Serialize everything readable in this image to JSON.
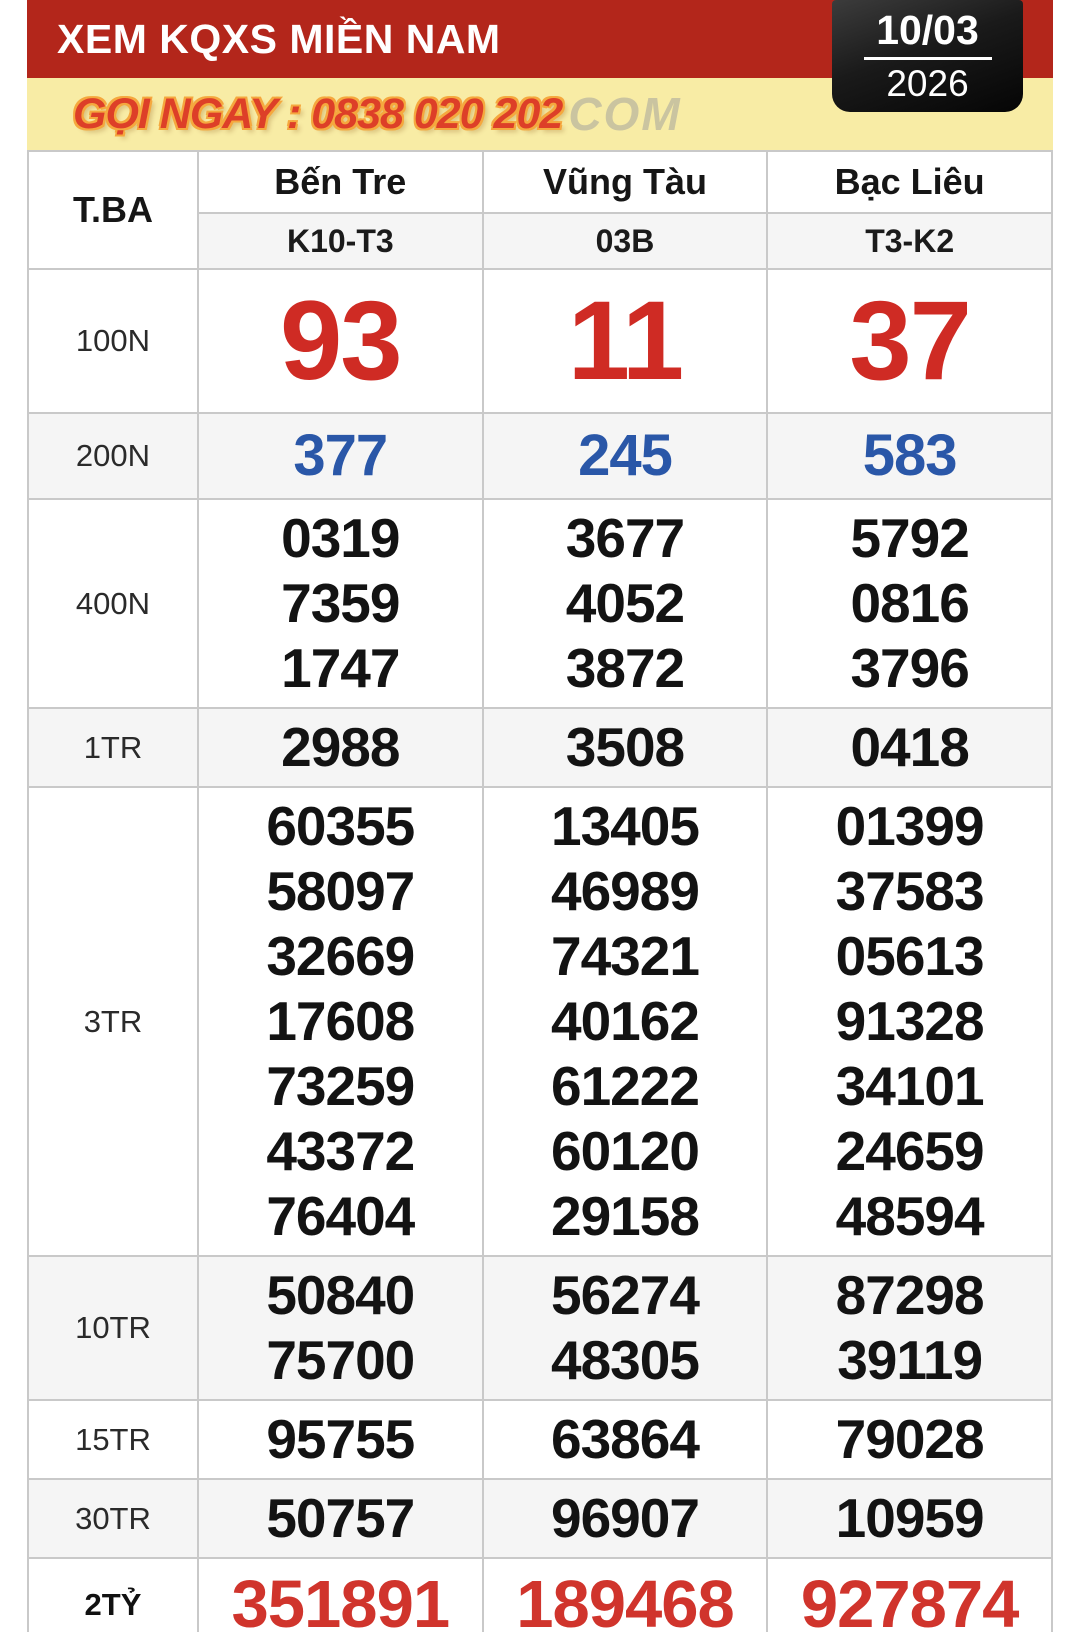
{
  "header": {
    "title": "XEM KQXS MIỀN NAM",
    "date_day": "10/03",
    "date_year": "2026",
    "hotline": "GỌI NGAY : 0838 020 202",
    "watermark": "COM"
  },
  "colors": {
    "banner_red": "#b3261b",
    "hotline_yellow": "#f8eca5",
    "hotline_text_red": "#dd3f28",
    "prize_red": "#cf2b24",
    "prize_blue": "#2a57a8",
    "final_red": "#d0342c"
  },
  "table": {
    "day_label": "T.BA",
    "provinces": [
      "Bến Tre",
      "Vũng Tàu",
      "Bạc Liêu"
    ],
    "draw_codes": [
      "K10-T3",
      "03B",
      "T3-K2"
    ],
    "prize_rows": [
      {
        "label": "100N",
        "style": "red-big",
        "columns": [
          [
            "93"
          ],
          [
            "11"
          ],
          [
            "37"
          ]
        ]
      },
      {
        "label": "200N",
        "style": "blue",
        "columns": [
          [
            "377"
          ],
          [
            "245"
          ],
          [
            "583"
          ]
        ]
      },
      {
        "label": "400N",
        "style": "default",
        "columns": [
          [
            "0319",
            "7359",
            "1747"
          ],
          [
            "3677",
            "4052",
            "3872"
          ],
          [
            "5792",
            "0816",
            "3796"
          ]
        ]
      },
      {
        "label": "1TR",
        "style": "default",
        "columns": [
          [
            "2988"
          ],
          [
            "3508"
          ],
          [
            "0418"
          ]
        ]
      },
      {
        "label": "3TR",
        "style": "default",
        "columns": [
          [
            "60355",
            "58097",
            "32669",
            "17608",
            "73259",
            "43372",
            "76404"
          ],
          [
            "13405",
            "46989",
            "74321",
            "40162",
            "61222",
            "60120",
            "29158"
          ],
          [
            "01399",
            "37583",
            "05613",
            "91328",
            "34101",
            "24659",
            "48594"
          ]
        ]
      },
      {
        "label": "10TR",
        "style": "default",
        "columns": [
          [
            "50840",
            "75700"
          ],
          [
            "56274",
            "48305"
          ],
          [
            "87298",
            "39119"
          ]
        ]
      },
      {
        "label": "15TR",
        "style": "default",
        "columns": [
          [
            "95755"
          ],
          [
            "63864"
          ],
          [
            "79028"
          ]
        ]
      },
      {
        "label": "30TR",
        "style": "default",
        "columns": [
          [
            "50757"
          ],
          [
            "96907"
          ],
          [
            "10959"
          ]
        ]
      },
      {
        "label": "2TỶ",
        "style": "red-final",
        "columns": [
          [
            "351891"
          ],
          [
            "189468"
          ],
          [
            "927874"
          ]
        ]
      }
    ]
  }
}
